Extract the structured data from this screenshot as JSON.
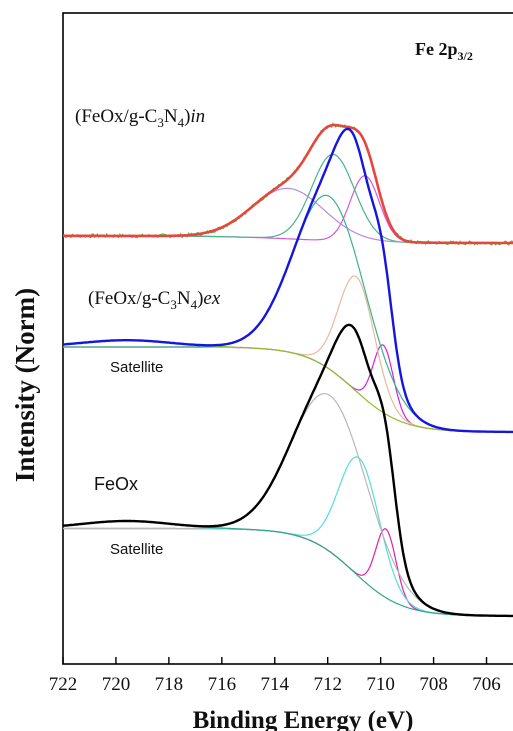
{
  "chart_data": {
    "type": "line",
    "xlabel": "Binding Energy (eV)",
    "ylabel": "Intensity (Norm)",
    "xlim": [
      722,
      705
    ],
    "x_reversed": true,
    "x_ticks": [
      722,
      720,
      718,
      716,
      714,
      712,
      710,
      708,
      706
    ],
    "y_ticks_shown": false,
    "grid": false,
    "annotations": {
      "peak_label": {
        "main": "Fe 2p",
        "sub": "3/2"
      },
      "in_label": {
        "pre": "(FeOx/g-C",
        "s1": "3",
        "mid": "N",
        "s2": "4",
        "post": ")",
        "it": "in"
      },
      "ex_label": {
        "pre": "(FeOx/g-C",
        "s1": "3",
        "mid": "N",
        "s2": "4",
        "post": ")",
        "it": "ex"
      },
      "feox_label": "FeOx",
      "satellite_ex": "Satellite",
      "satellite_feox": "Satellite"
    },
    "panels": [
      {
        "name": "(FeOx/g-C3N4)in",
        "baseline": 0.0,
        "envelope_color": "#e8453c",
        "raw_color": "#2ecc40",
        "components": [
          {
            "color": "#d25ad2",
            "center": 710.6,
            "fwhm": 1.3,
            "height": 0.55
          },
          {
            "color": "#4cb38c",
            "center": 711.8,
            "fwhm": 1.9,
            "height": 0.72
          },
          {
            "color": "#b48ce6",
            "center": 713.5,
            "fwhm": 3.2,
            "height": 0.42
          }
        ],
        "envelope_peak": {
          "x": 711.0,
          "y": 1.45
        }
      },
      {
        "name": "(FeOx/g-C3N4)ex",
        "envelope_color": "#1515e0",
        "components": [
          {
            "color": "#d91fd9",
            "center": 709.9,
            "fwhm": 0.9,
            "height": 0.5
          },
          {
            "color": "#e8b8a0",
            "center": 710.9,
            "fwhm": 1.6,
            "height": 0.85
          },
          {
            "color": "#3cb38c",
            "center": 711.9,
            "fwhm": 3.2,
            "height": 1.28
          },
          {
            "color": "#8bbf2a",
            "center": 719.6,
            "fwhm": 4.0,
            "height": 0.05
          }
        ],
        "envelope_peak": {
          "x": 711.0,
          "y": 1.35
        }
      },
      {
        "name": "FeOx",
        "envelope_color": "#000000",
        "components": [
          {
            "color": "#e21fa8",
            "center": 709.8,
            "fwhm": 0.9,
            "height": 0.55
          },
          {
            "color": "#55dede",
            "center": 710.8,
            "fwhm": 1.8,
            "height": 0.95
          },
          {
            "color": "#b8b8b8",
            "center": 711.9,
            "fwhm": 3.4,
            "height": 1.25
          },
          {
            "color": "#2ea88a",
            "center": 719.6,
            "fwhm": 4.0,
            "height": 0.06
          }
        ],
        "envelope_peak": {
          "x": 710.9,
          "y": 1.25
        }
      }
    ]
  }
}
